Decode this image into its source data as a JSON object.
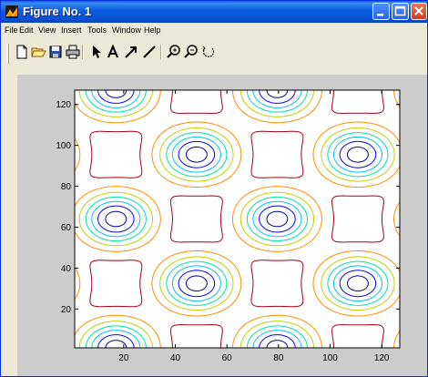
{
  "window": {
    "title": "Figure No. 1",
    "titlebar_color": "#0a5fe0",
    "buttons": [
      "minimize-icon",
      "maximize-icon",
      "close-icon"
    ]
  },
  "menubar": {
    "items": [
      "File",
      "Edit",
      "View",
      "Insert",
      "Tools",
      "Window",
      "Help"
    ]
  },
  "toolbar": {
    "tools": [
      "new-figure-icon",
      "open-file-icon",
      "save-icon",
      "print-icon",
      "edit-plot-arrow-icon",
      "insert-text-icon",
      "insert-arrow-icon",
      "insert-line-icon",
      "zoom-in-icon",
      "zoom-out-icon",
      "rotate-3d-icon"
    ]
  },
  "chart_data": {
    "type": "contour",
    "title": "",
    "xlabel": "",
    "ylabel": "",
    "xlim": [
      1,
      127
    ],
    "ylim": [
      1,
      127
    ],
    "xticks": [
      "20",
      "40",
      "60",
      "80",
      "100",
      "120"
    ],
    "yticks": [
      "20",
      "40",
      "60",
      "80",
      "100",
      "120"
    ],
    "background": "#cccccc",
    "axes_background": "#ffffff",
    "pattern": "doubly periodic bumps with peaks on an offset lattice",
    "peak_centers": [
      [
        17,
        1
      ],
      [
        79,
        1
      ],
      [
        48,
        32
      ],
      [
        111,
        32
      ],
      [
        17,
        64
      ],
      [
        79,
        64
      ],
      [
        48,
        95
      ],
      [
        111,
        95
      ],
      [
        17,
        127
      ],
      [
        79,
        127
      ]
    ],
    "contour_levels": 7,
    "level_colors": [
      "#000080",
      "#0000ff",
      "#00bfff",
      "#00e0a0",
      "#c0d000",
      "#ff8c00",
      "#a0001a"
    ]
  }
}
